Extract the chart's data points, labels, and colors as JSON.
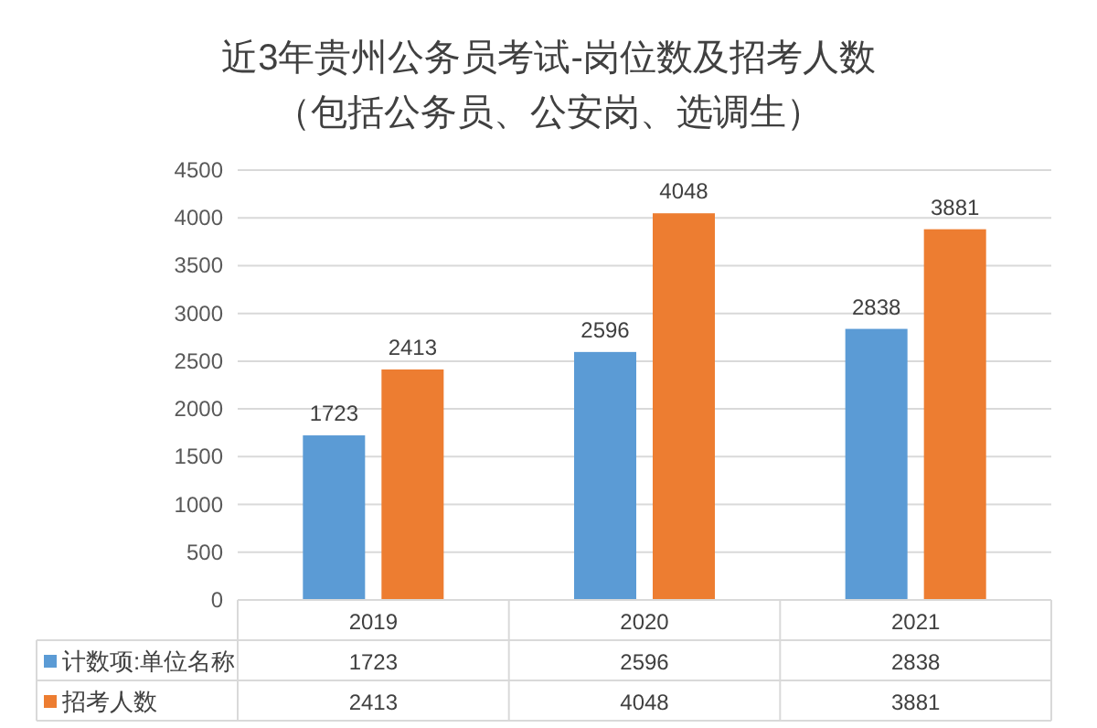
{
  "chart_data": {
    "type": "bar",
    "title": "近3年贵州公务员考试-岗位数及招考人数",
    "subtitle": "（包括公务员、公安岗、选调生）",
    "categories": [
      "2019",
      "2020",
      "2021"
    ],
    "series": [
      {
        "name": "计数项:单位名称",
        "color": "#5b9bd5",
        "values": [
          1723,
          2596,
          2838
        ],
        "value_labels": [
          "1723",
          "2596",
          "2838"
        ]
      },
      {
        "name": "招考人数",
        "color": "#ed7d31",
        "values": [
          2413,
          4048,
          3881
        ],
        "value_labels": [
          "2413",
          "4048",
          "3881"
        ]
      }
    ],
    "ylim": [
      0,
      4500
    ],
    "yticks": [
      0,
      500,
      1000,
      1500,
      2000,
      2500,
      3000,
      3500,
      4000,
      4500
    ],
    "grid": "y",
    "annotations": [
      "1723",
      "2596",
      "2838",
      "2413",
      "4048",
      "3881"
    ],
    "legend": "bottom left"
  }
}
